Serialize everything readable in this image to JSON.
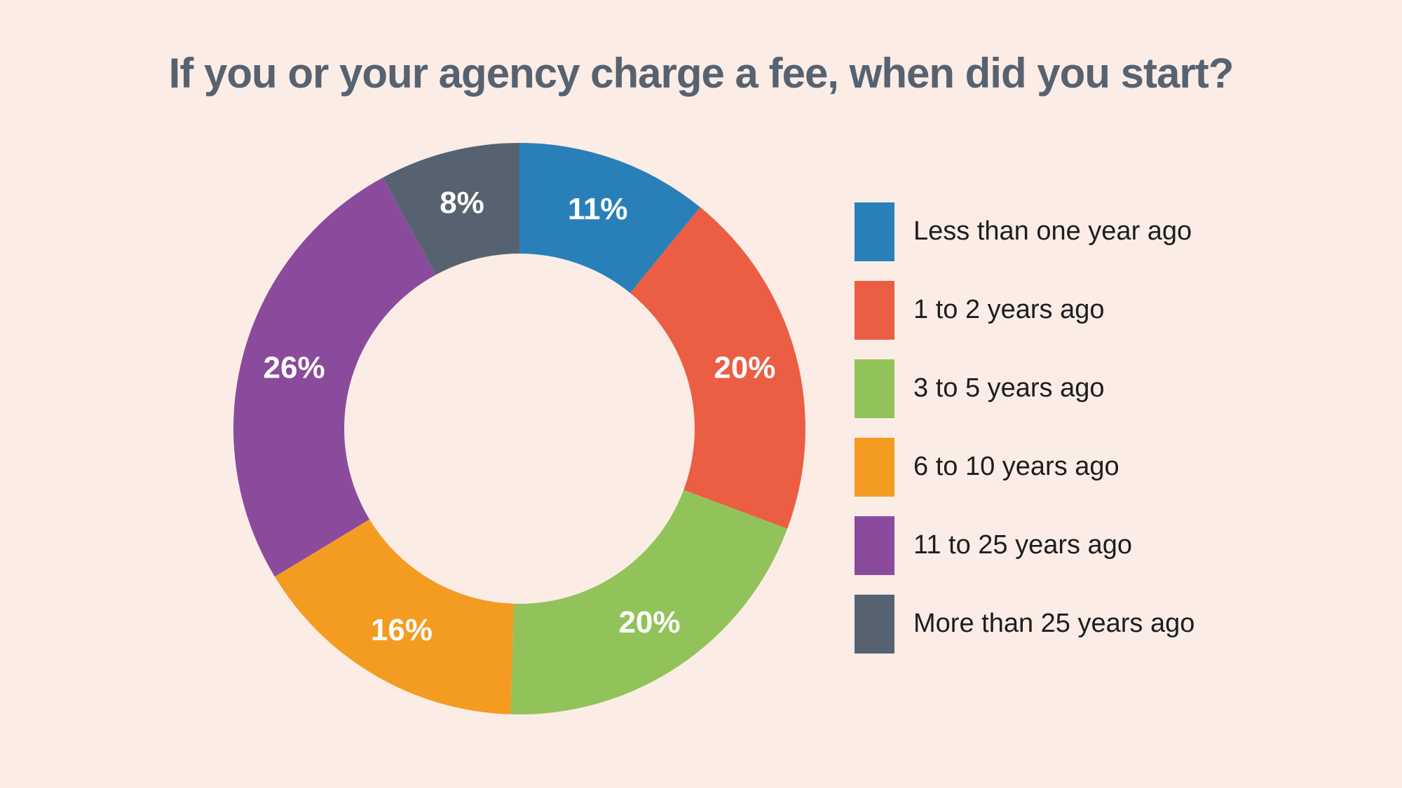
{
  "chart_data": {
    "type": "pie",
    "title": "If you or your agency charge a fee, when did you start?",
    "categories": [
      "Less than one year ago",
      "1 to 2 years ago",
      "3 to 5 years ago",
      "6 to 10 years ago",
      "11 to 25 years ago",
      "More than 25 years ago"
    ],
    "values": [
      11,
      20,
      20,
      16,
      26,
      8
    ],
    "data_labels": [
      "11%",
      "20%",
      "20%",
      "16%",
      "26%",
      "8%"
    ],
    "colors": [
      "#2980b9",
      "#eb5e43",
      "#92c35a",
      "#f39c21",
      "#8b4b9d",
      "#566270"
    ],
    "donut": true,
    "legend_position": "right"
  },
  "colors": {
    "background": "#fcece6",
    "title": "#566270",
    "slice_label": "#ffffff",
    "legend_text": "#1e1e1e"
  }
}
